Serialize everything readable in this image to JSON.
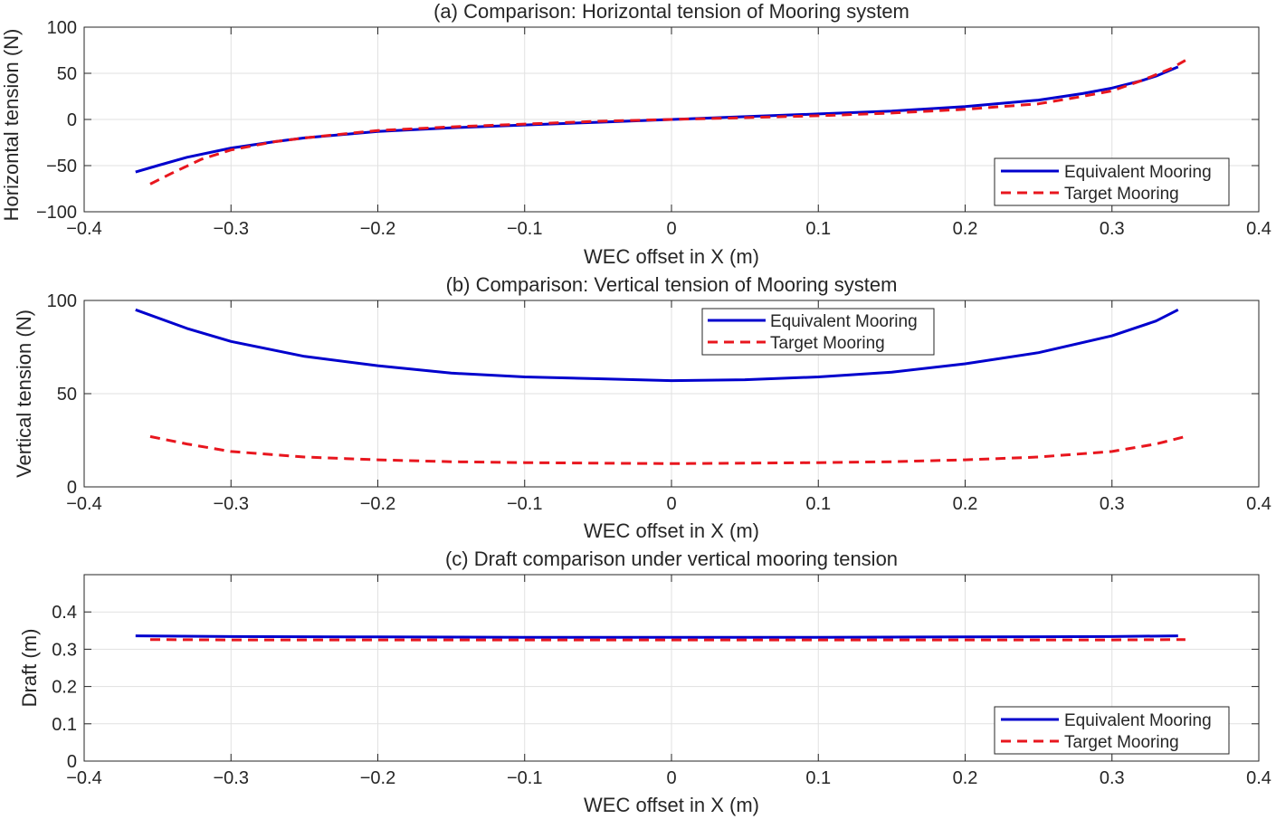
{
  "chart_data": [
    {
      "type": "line",
      "title": "(a) Comparison: Horizontal tension of Mooring system",
      "xlabel": "WEC offset in X (m)",
      "ylabel": "Horizontal tension (N)",
      "xlim": [
        -0.4,
        0.4
      ],
      "ylim": [
        -100,
        100
      ],
      "xticks": [
        -0.4,
        -0.3,
        -0.2,
        -0.1,
        0,
        0.1,
        0.2,
        0.3,
        0.4
      ],
      "xtick_labels": [
        "−0.4",
        "−0.3",
        "−0.2",
        "−0.1",
        "0",
        "0.1",
        "0.2",
        "0.3",
        "0.4"
      ],
      "yticks": [
        -100,
        -50,
        0,
        50,
        100
      ],
      "ytick_labels": [
        "−100",
        "−50",
        "0",
        "50",
        "100"
      ],
      "grid": true,
      "legend_position": "bottom-right",
      "series": [
        {
          "name": "Equivalent Mooring",
          "color": "#0000CD",
          "style": "solid",
          "x": [
            -0.365,
            -0.35,
            -0.33,
            -0.3,
            -0.27,
            -0.25,
            -0.2,
            -0.15,
            -0.1,
            -0.05,
            0,
            0.05,
            0.1,
            0.15,
            0.2,
            0.25,
            0.28,
            0.3,
            0.32,
            0.33,
            0.345
          ],
          "y": [
            -57,
            -50,
            -41,
            -31,
            -24,
            -20,
            -13,
            -9,
            -6,
            -3,
            0,
            3,
            6,
            9,
            14,
            21,
            28,
            34,
            42,
            47,
            57
          ]
        },
        {
          "name": "Target Mooring",
          "color": "#E8161E",
          "style": "dashed",
          "x": [
            -0.355,
            -0.34,
            -0.32,
            -0.3,
            -0.27,
            -0.25,
            -0.2,
            -0.15,
            -0.1,
            -0.05,
            0,
            0.05,
            0.1,
            0.15,
            0.2,
            0.25,
            0.28,
            0.3,
            0.32,
            0.34,
            0.35
          ],
          "y": [
            -70,
            -58,
            -43,
            -33,
            -24,
            -20,
            -12,
            -8,
            -5,
            -2,
            0,
            2,
            4,
            7,
            11,
            17,
            25,
            31,
            42,
            55,
            64
          ]
        }
      ]
    },
    {
      "type": "line",
      "title": "(b) Comparison: Vertical tension of Mooring system",
      "xlabel": "WEC offset in X (m)",
      "ylabel": "Vertical tension (N)",
      "xlim": [
        -0.4,
        0.4
      ],
      "ylim": [
        0,
        100
      ],
      "xticks": [
        -0.4,
        -0.3,
        -0.2,
        -0.1,
        0,
        0.1,
        0.2,
        0.3,
        0.4
      ],
      "xtick_labels": [
        "−0.4",
        "−0.3",
        "−0.2",
        "−0.1",
        "0",
        "0.1",
        "0.2",
        "0.3",
        "0.4"
      ],
      "yticks": [
        0,
        50,
        100
      ],
      "ytick_labels": [
        "0",
        "50",
        "100"
      ],
      "grid": true,
      "legend_position": "top-center",
      "series": [
        {
          "name": "Equivalent Mooring",
          "color": "#0000CD",
          "style": "solid",
          "x": [
            -0.365,
            -0.33,
            -0.3,
            -0.25,
            -0.2,
            -0.15,
            -0.1,
            -0.05,
            0,
            0.05,
            0.1,
            0.15,
            0.2,
            0.25,
            0.3,
            0.33,
            0.345
          ],
          "y": [
            95,
            85,
            78,
            70,
            65,
            61,
            59,
            58,
            57,
            57.5,
            59,
            61.5,
            66,
            72,
            81,
            89,
            95
          ]
        },
        {
          "name": "Target Mooring",
          "color": "#E8161E",
          "style": "dashed",
          "x": [
            -0.355,
            -0.33,
            -0.3,
            -0.25,
            -0.2,
            -0.15,
            -0.1,
            -0.05,
            0,
            0.05,
            0.1,
            0.15,
            0.2,
            0.25,
            0.3,
            0.33,
            0.35
          ],
          "y": [
            27,
            23,
            19,
            16,
            14.5,
            13.5,
            13,
            12.7,
            12.5,
            12.7,
            13,
            13.5,
            14.5,
            16,
            19,
            23,
            27
          ]
        }
      ]
    },
    {
      "type": "line",
      "title": "(c) Draft comparison under vertical mooring tension",
      "xlabel": "WEC offset in X (m)",
      "ylabel": "Draft (m)",
      "xlim": [
        -0.4,
        0.4
      ],
      "ylim": [
        0,
        0.5
      ],
      "xticks": [
        -0.4,
        -0.3,
        -0.2,
        -0.1,
        0,
        0.1,
        0.2,
        0.3,
        0.4
      ],
      "xtick_labels": [
        "−0.4",
        "−0.3",
        "−0.2",
        "−0.1",
        "0",
        "0.1",
        "0.2",
        "0.3",
        "0.4"
      ],
      "yticks": [
        0,
        0.1,
        0.2,
        0.3,
        0.4
      ],
      "ytick_labels": [
        "0",
        "0.1",
        "0.2",
        "0.3",
        "0.4"
      ],
      "grid": true,
      "legend_position": "bottom-right",
      "series": [
        {
          "name": "Equivalent Mooring",
          "color": "#0000CD",
          "style": "solid",
          "x": [
            -0.365,
            -0.3,
            -0.2,
            -0.1,
            0,
            0.1,
            0.2,
            0.3,
            0.345
          ],
          "y": [
            0.336,
            0.334,
            0.333,
            0.332,
            0.332,
            0.332,
            0.333,
            0.334,
            0.336
          ]
        },
        {
          "name": "Target Mooring",
          "color": "#E8161E",
          "style": "dashed",
          "x": [
            -0.355,
            -0.3,
            -0.2,
            -0.1,
            0,
            0.1,
            0.2,
            0.3,
            0.35
          ],
          "y": [
            0.326,
            0.325,
            0.325,
            0.325,
            0.325,
            0.325,
            0.325,
            0.325,
            0.326
          ]
        }
      ]
    }
  ]
}
